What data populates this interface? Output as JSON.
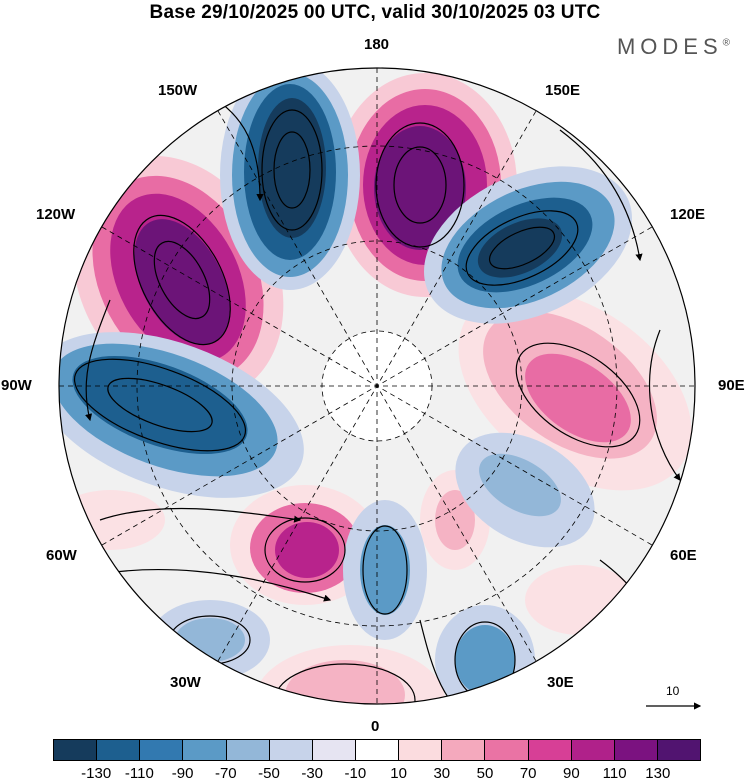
{
  "header": {
    "title": "Base 29/10/2025 00 UTC, valid 30/10/2025 03 UTC",
    "brand": "MODES",
    "brand_mark": "®"
  },
  "map": {
    "projection": "north polar stereographic",
    "longitude_labels": {
      "top": "180",
      "top_right": "150E",
      "right_upper": "120E",
      "right": "90E",
      "right_lower": "60E",
      "bottom_right": "30E",
      "bottom": "0",
      "bottom_left": "30W",
      "left_lower": "60W",
      "left": "90W",
      "left_upper": "120W",
      "top_left": "150W"
    },
    "reference_vector_label": "10"
  },
  "colorbar": {
    "ticks": [
      "-130",
      "-110",
      "-90",
      "-70",
      "-50",
      "-30",
      "-10",
      "10",
      "30",
      "50",
      "70",
      "90",
      "110",
      "130"
    ],
    "colors": [
      "#153b5c",
      "#1d5f8f",
      "#3279b0",
      "#5b9ac6",
      "#93b7d8",
      "#c7d3ea",
      "#e6e4f2",
      "#ffffff",
      "#fbdcdf",
      "#f4a9bd",
      "#ea73a4",
      "#d73f96",
      "#b0218a",
      "#7b1280",
      "#511470"
    ]
  }
}
